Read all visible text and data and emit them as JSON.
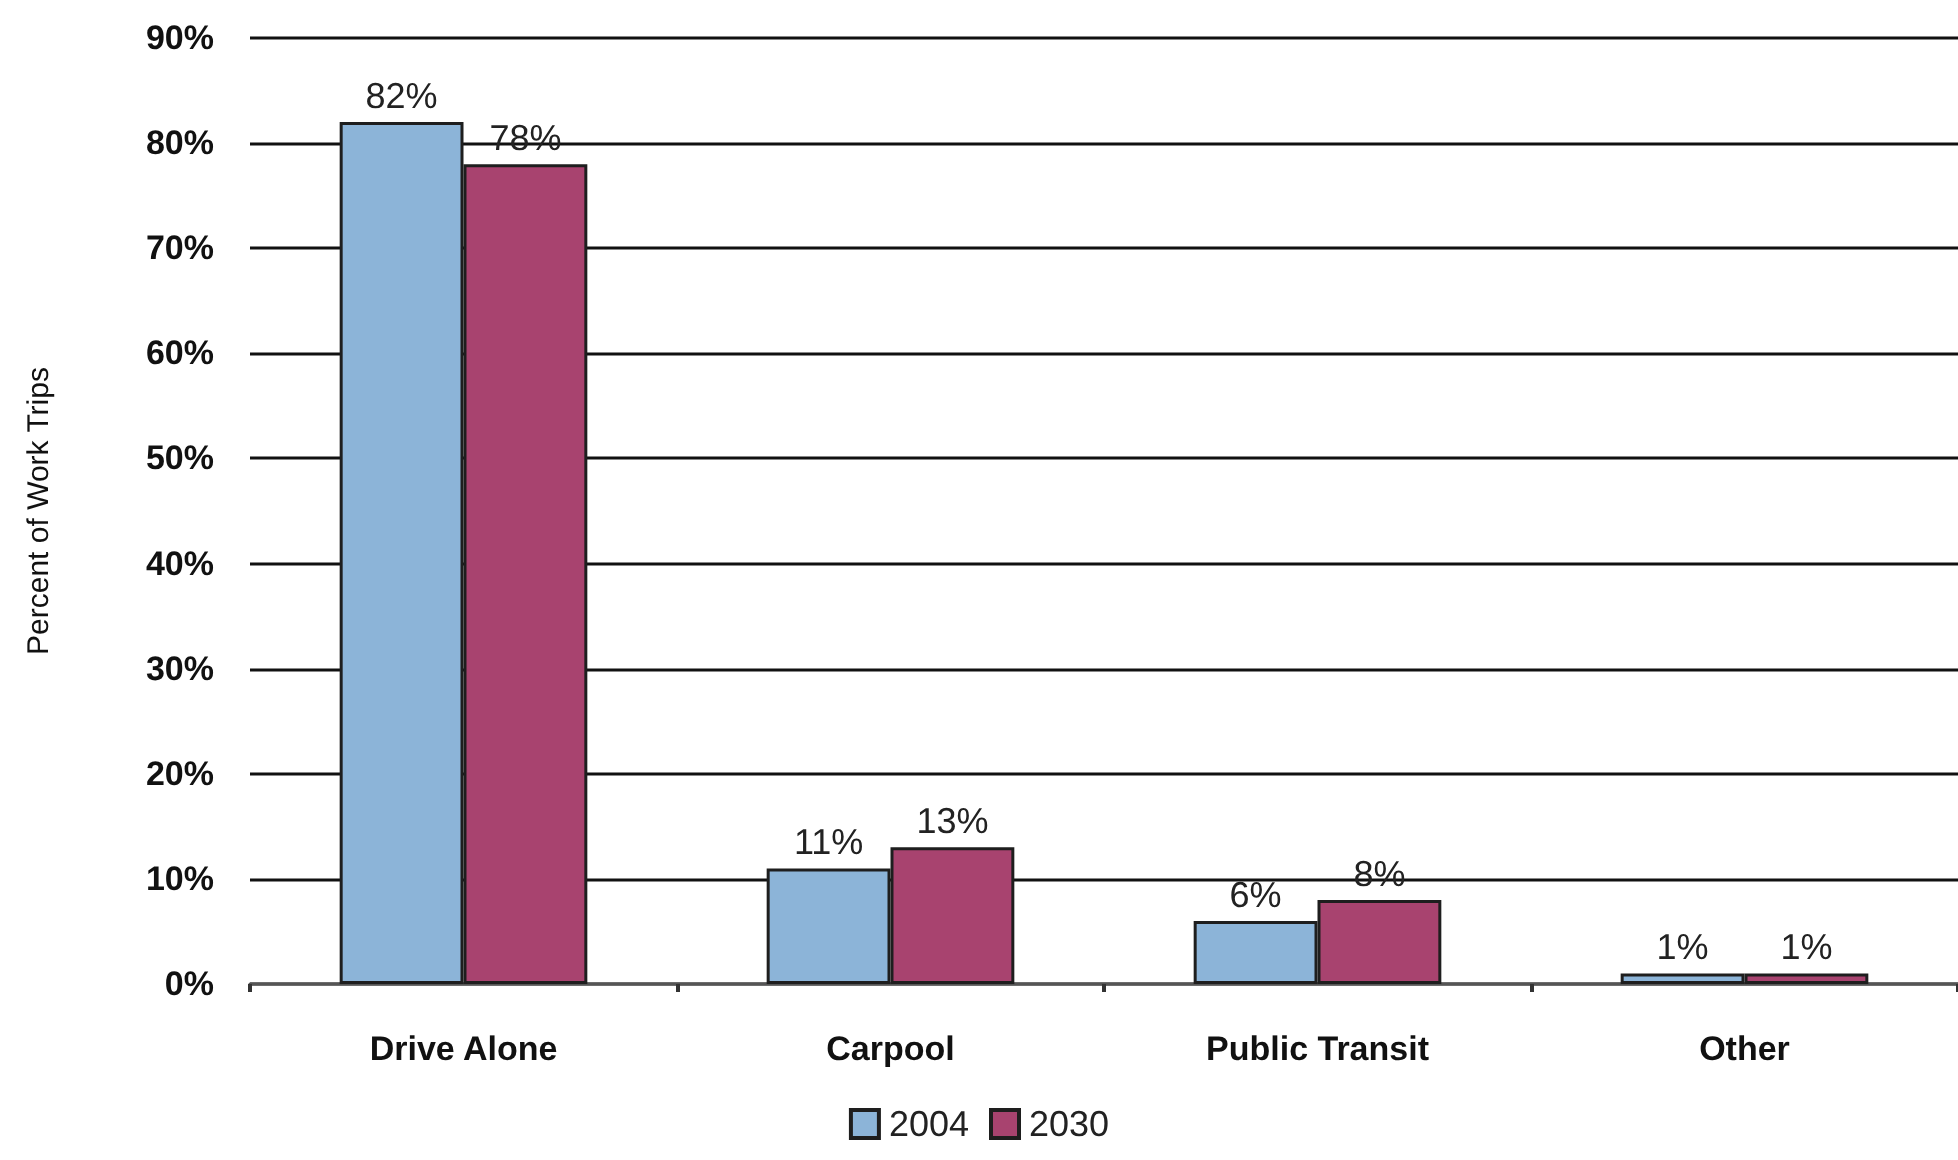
{
  "chart_data": {
    "type": "bar",
    "ylabel": "Percent of Work Trips",
    "categories": [
      "Drive Alone",
      "Carpool",
      "Public Transit",
      "Other"
    ],
    "series": [
      {
        "name": "2004",
        "color": "#8cb4d8",
        "values": [
          82,
          11,
          6,
          1
        ],
        "value_labels": [
          "82%",
          "11%",
          "6%",
          "1%"
        ]
      },
      {
        "name": "2030",
        "color": "#a8436f",
        "values": [
          78,
          13,
          8,
          1
        ],
        "value_labels": [
          "78%",
          "13%",
          "8%",
          "1%"
        ]
      }
    ],
    "ylim": [
      0,
      90
    ],
    "yticks": [
      {
        "value": 0,
        "label": "0%"
      },
      {
        "value": 10,
        "label": "10%"
      },
      {
        "value": 20,
        "label": "20%"
      },
      {
        "value": 30,
        "label": "30%"
      },
      {
        "value": 40,
        "label": "40%"
      },
      {
        "value": 50,
        "label": "50%"
      },
      {
        "value": 60,
        "label": "60%"
      },
      {
        "value": 70,
        "label": "70%"
      },
      {
        "value": 80,
        "label": "80%"
      },
      {
        "value": 90,
        "label": "90%"
      }
    ],
    "grid": "y",
    "legend": "bottom"
  }
}
